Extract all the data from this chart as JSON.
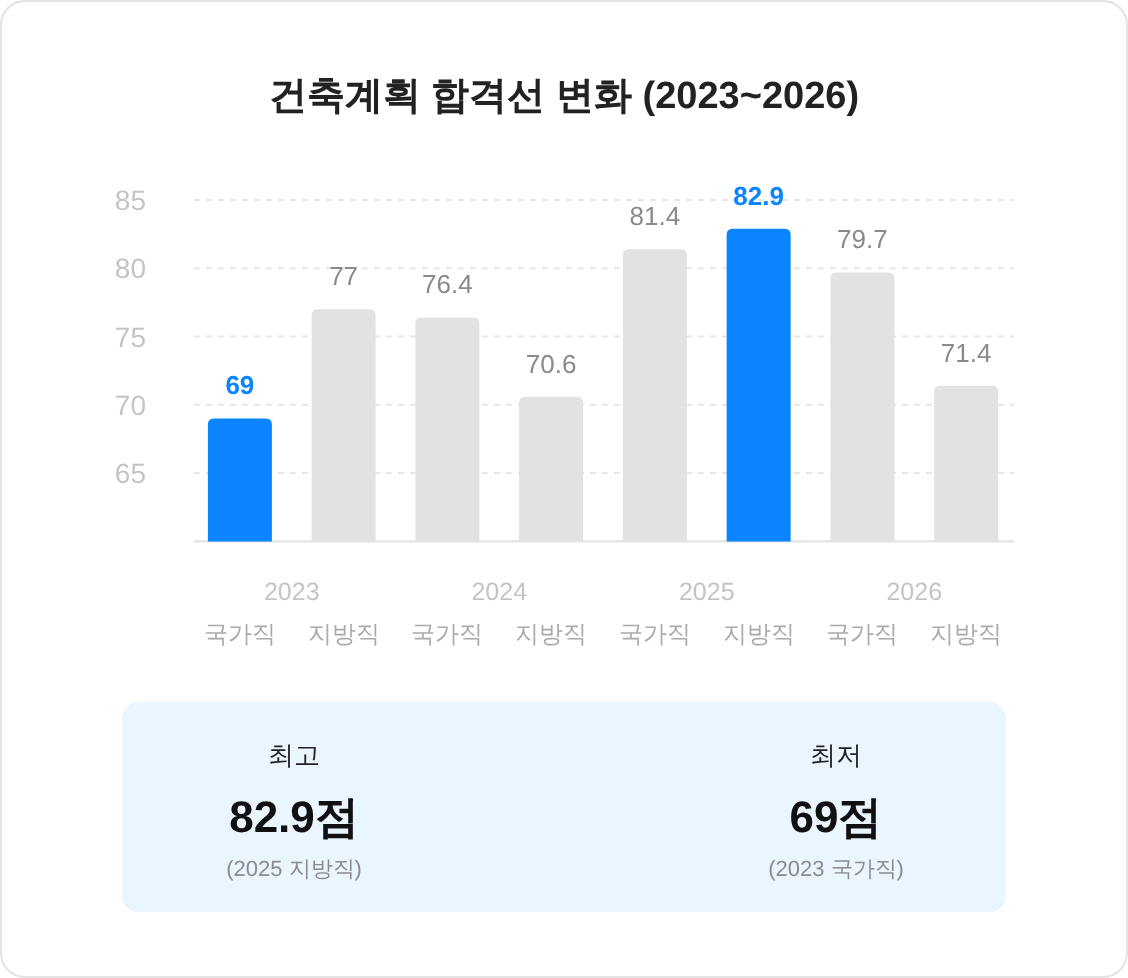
{
  "chart_data": [
    {
      "type": "bar",
      "title": "건축계획 합격선 변화 (2023~2026)",
      "categories": [
        "국가직",
        "지방직",
        "국가직",
        "지방직",
        "국가직",
        "지방직",
        "국가직",
        "지방직"
      ],
      "values": [
        69,
        77,
        76.4,
        70.6,
        81.4,
        82.9,
        79.7,
        71.4
      ],
      "colors": [
        "#0a84ff",
        "#e2e2e2",
        "#e2e2e2",
        "#e2e2e2",
        "#e2e2e2",
        "#0a84ff",
        "#e2e2e2",
        "#e2e2e2"
      ],
      "ylim": [
        60,
        85
      ],
      "yticks": [
        65,
        70,
        75,
        80,
        85
      ],
      "grid": "y",
      "data_labels": true,
      "annotations": [
        "2023",
        "2024",
        "2025",
        "2026"
      ]
    },
    {
      "type": "other",
      "annotations": [
        "최고",
        "82.9점",
        "(2025 지방직)",
        "최저",
        "69점",
        "(2023 국가직)"
      ]
    }
  ]
}
